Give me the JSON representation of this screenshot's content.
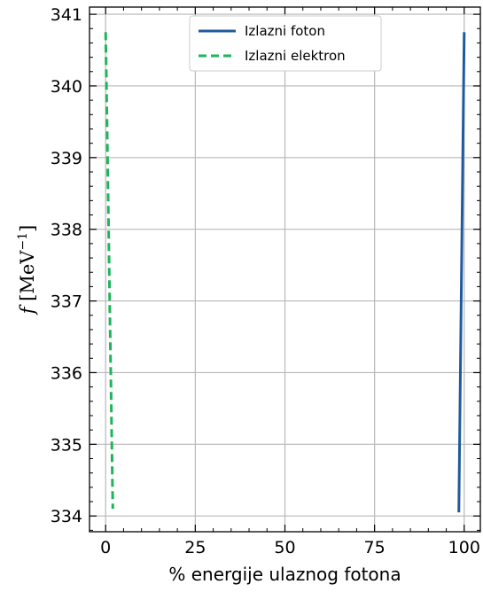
{
  "chart_data": {
    "type": "line",
    "xlabel": "% energije ulaznog fotona",
    "ylabel": {
      "prefix": "f [MeV",
      "exponent": "−1",
      "suffix": "]"
    },
    "xlim": [
      -4.5,
      104.5
    ],
    "ylim": [
      333.78,
      341.1
    ],
    "xticks": [
      0,
      25,
      50,
      75,
      100
    ],
    "xtick_labels": [
      "0",
      "25",
      "50",
      "75",
      "100"
    ],
    "yticks": [
      334,
      335,
      336,
      337,
      338,
      339,
      340,
      341
    ],
    "ytick_labels": [
      "334",
      "335",
      "336",
      "337",
      "338",
      "339",
      "340",
      "341"
    ],
    "grid": true,
    "legend_position": "top-center",
    "series": [
      {
        "name": "Izlazni foton",
        "color": "#1f5a9e",
        "dash": "solid",
        "points": [
          [
            98.5,
            334.05
          ],
          [
            100,
            340.75
          ]
        ]
      },
      {
        "name": "Izlazni elektron",
        "color": "#1fb45a",
        "dash": "dashed",
        "points": [
          [
            0,
            340.75
          ],
          [
            2,
            334.1
          ]
        ]
      }
    ]
  }
}
